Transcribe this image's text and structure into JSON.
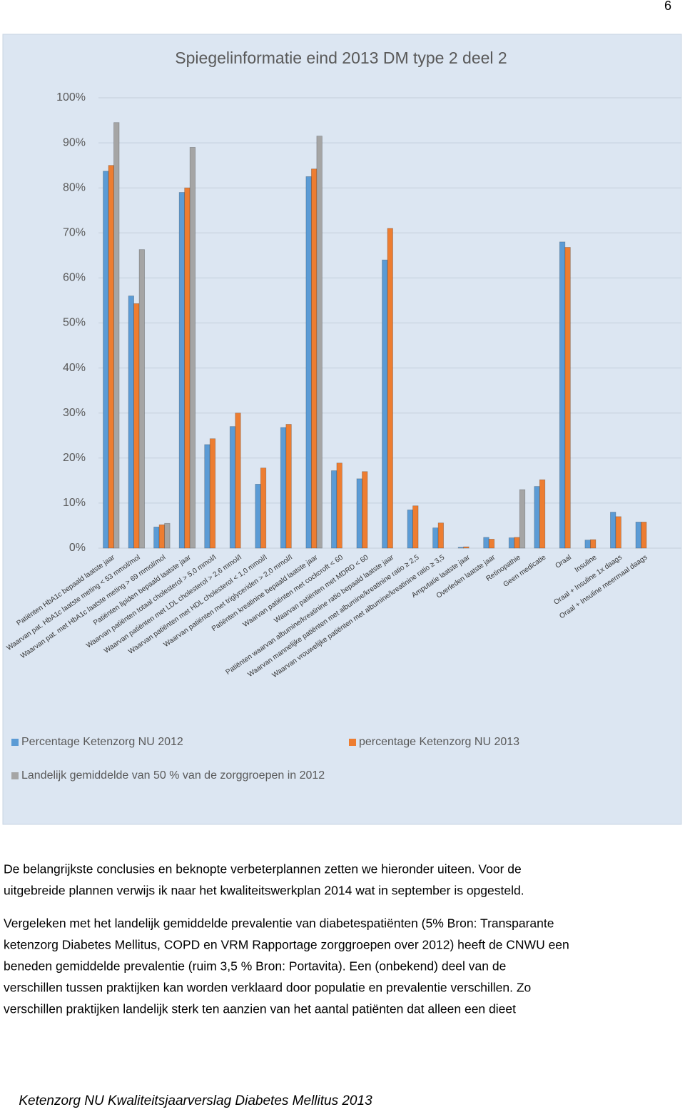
{
  "page_number": "6",
  "chart_data": {
    "type": "bar",
    "title": "Spiegelinformatie eind 2013 DM type 2 deel 2",
    "categories": [
      "Patiënten HbA1c bepaald laatste jaar",
      "Waarvan pat. HbA1c laatste meting < 53 mmol/mol",
      "Waarvan pat. met HbA1c laatste meting > 69 mmol/mol",
      "Patiënten lipiden bepaald laatste jaar",
      "Waarvan patiënten totaal cholesterol > 5,0 mmol/l",
      "Waarvan patiënten met LDL cholesterol > 2,6 mmol/l",
      "Waarvan patiënten met HDL cholesterol < 1,0 mmol/l",
      "Waarvan patiënten met triglyceriden > 2,0 mmol/l",
      "Patiënten kreatinine bepaald laatste jaar",
      "Waarvan patiënten met cockcroft < 60",
      "Waarvan patiënten met MDRD < 60",
      "Patiënten waarvan albumine/kreatinine ratio bepaald laatste jaar",
      "Waarvan mannelijke patiënten met albumine/kreatinine ratio ≥ 2,5",
      "Waarvan vrouwelijke patiënten met albumine/kreatinine ratio ≥ 3,5",
      "Amputatie laatste jaar",
      "Overleden laatste jaar",
      "Retinopathie",
      "Geen medicatie",
      "Oraal",
      "Insuline",
      "Oraal + Insuline 1x daags",
      "Oraal + Insuline meermaal daags"
    ],
    "series": [
      {
        "name": "Percentage Ketenzorg NU 2012",
        "color": "#5b9bd5",
        "values": [
          83.7,
          56,
          4.7,
          79,
          23,
          27,
          14.2,
          26.8,
          82.5,
          17.2,
          15.4,
          64,
          8.5,
          4.5,
          0.2,
          2.4,
          2.3,
          13.7,
          68,
          1.8,
          8,
          5.8
        ]
      },
      {
        "name": "percentage Ketenzorg NU 2013",
        "color": "#ed7d31",
        "values": [
          85,
          54.3,
          5.2,
          80,
          24.3,
          30,
          17.8,
          27.5,
          84.2,
          18.9,
          17,
          71,
          9.4,
          5.6,
          0.3,
          2,
          2.4,
          15.2,
          66.8,
          1.9,
          7,
          5.8
        ]
      },
      {
        "name": "Landelijk gemiddelde van 50 % van de zorggroepen in 2012",
        "color": "#a5a5a5",
        "values": [
          94.5,
          66.3,
          5.5,
          89,
          null,
          null,
          null,
          null,
          91.5,
          null,
          null,
          null,
          null,
          null,
          null,
          null,
          13,
          null,
          null,
          null,
          null,
          null
        ]
      }
    ],
    "ylim": [
      0,
      100
    ],
    "yticks": [
      {
        "value": 0,
        "label": "0%"
      },
      {
        "value": 10,
        "label": "10%"
      },
      {
        "value": 20,
        "label": "20%"
      },
      {
        "value": 30,
        "label": "30%"
      },
      {
        "value": 40,
        "label": "40%"
      },
      {
        "value": 50,
        "label": "50%"
      },
      {
        "value": 60,
        "label": "60%"
      },
      {
        "value": 70,
        "label": "70%"
      },
      {
        "value": 80,
        "label": "80%"
      },
      {
        "value": 90,
        "label": "90%"
      },
      {
        "value": 100,
        "label": "100%"
      }
    ],
    "grid": true
  },
  "paragraphs": [
    [
      "De belangrijkste conclusies en beknopte verbeterplannen zetten we hieronder uiteen. Voor de",
      "uitgebreide plannen verwijs ik naar het kwaliteitswerkplan 2014 wat in september is opgesteld."
    ],
    [
      "Vergeleken met het landelijk gemiddelde prevalentie van diabetespatiënten (5% Bron: Transparante",
      "ketenzorg Diabetes Mellitus, COPD en VRM Rapportage zorggroepen over 2012) heeft de CNWU een",
      "beneden gemiddelde prevalentie (ruim 3,5 % Bron: Portavita). Een (onbekend) deel van de",
      "verschillen tussen praktijken kan worden verklaard door populatie en prevalentie verschillen. Zo",
      "verschillen praktijken landelijk sterk ten aanzien van het aantal patiënten dat alleen een dieet"
    ]
  ],
  "footer": "Ketenzorg NU Kwaliteitsjaarverslag Diabetes Mellitus 2013"
}
